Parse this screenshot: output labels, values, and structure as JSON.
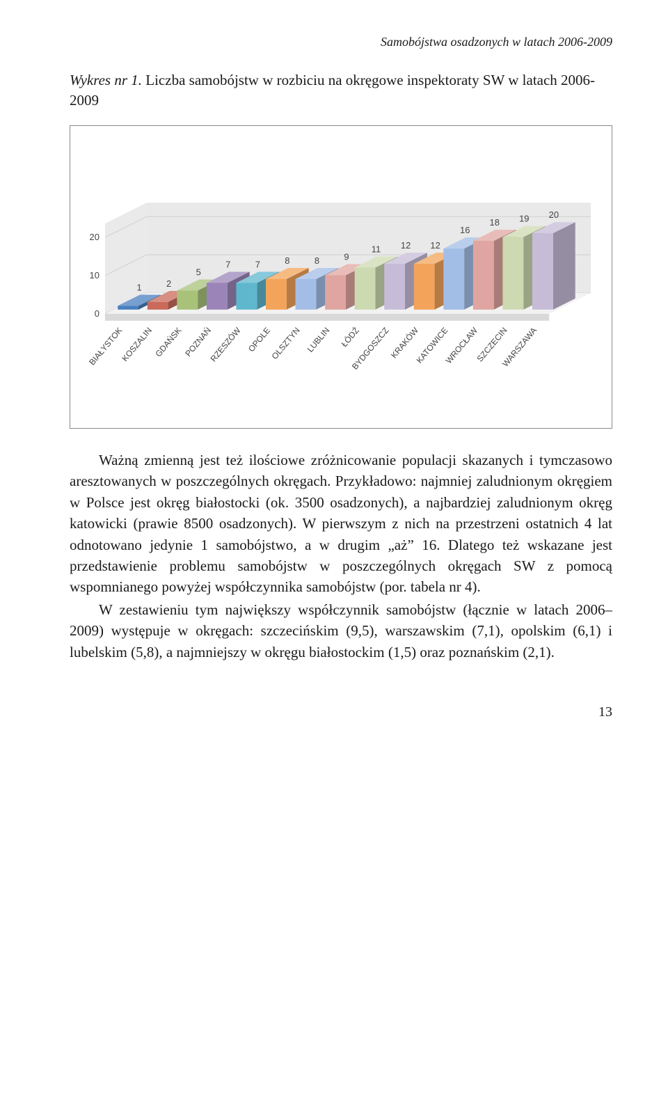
{
  "running_head": "Samobójstwa osadzonych w latach 2006-2009",
  "caption_prefix": "Wykres nr 1.",
  "caption_rest": " Liczba samobójstw w rozbiciu na okręgowe inspektoraty SW w latach 2006-2009",
  "chart": {
    "type": "bar-3d",
    "ylim": [
      0,
      20
    ],
    "yticks": [
      0,
      10,
      20
    ],
    "categories": [
      "BIAŁYSTOK",
      "KOSZALIN",
      "GDAŃSK",
      "POZNAŃ",
      "RZESZÓW",
      "OPOLE",
      "OLSZTYN",
      "LUBLIN",
      "ŁÓDŹ",
      "BYDGOSZCZ",
      "KRAKÓW",
      "KATOWICE",
      "WROCŁAW",
      "SZCZECIN",
      "WARSZAWA"
    ],
    "values": [
      1,
      2,
      5,
      7,
      7,
      8,
      8,
      9,
      11,
      12,
      12,
      16,
      18,
      19,
      20
    ],
    "bar_colors": [
      "#4a7fbf",
      "#c96a5a",
      "#a8c27a",
      "#9b85b8",
      "#5fb7cd",
      "#f3a45a",
      "#a2bee6",
      "#e0a5a0",
      "#cdd9b0",
      "#c6bcd8",
      "#f3a45a",
      "#a2bee6",
      "#e0a5a0",
      "#cdd9b0",
      "#c6bcd8"
    ],
    "background": "#ffffff",
    "floor_top": "#f2f2f2",
    "floor_front": "#d9d9d9",
    "grid_color": "#cfcfcf",
    "wall_color": "#e9e9e9",
    "label_color": "#555555",
    "cat_label_fontsize": 12,
    "bar_label_fontsize": 13,
    "axis_label_fontsize": 13
  },
  "para1": "Ważną zmienną jest też ilościowe zróżnicowanie populacji skazanych i tymczasowo aresztowanych w poszczególnych okręgach. Przykładowo: najmniej zaludnionym okręgiem w Polsce jest okręg białostocki (ok. 3500 osadzonych), a najbardziej zaludnionym okręg katowicki (prawie 8500 osadzonych). W pierwszym z nich na przestrzeni ostatnich 4 lat odnotowano jedynie 1 samobójstwo, a w drugim „aż” 16. Dlatego też wskazane jest przedstawienie problemu samobójstw w poszczególnych okręgach SW z pomocą wspomnianego powyżej współczynnika samobójstw (por. tabela nr 4).",
  "para2": "W zestawieniu tym największy współczynnik samobójstw (łącznie w latach 2006–2009) występuje w okręgach: szczecińskim (9,5), warszawskim (7,1), opolskim (6,1) i lubelskim (5,8), a najmniejszy w okręgu białostockim (1,5) oraz poznańskim (2,1).",
  "page_number": "13"
}
